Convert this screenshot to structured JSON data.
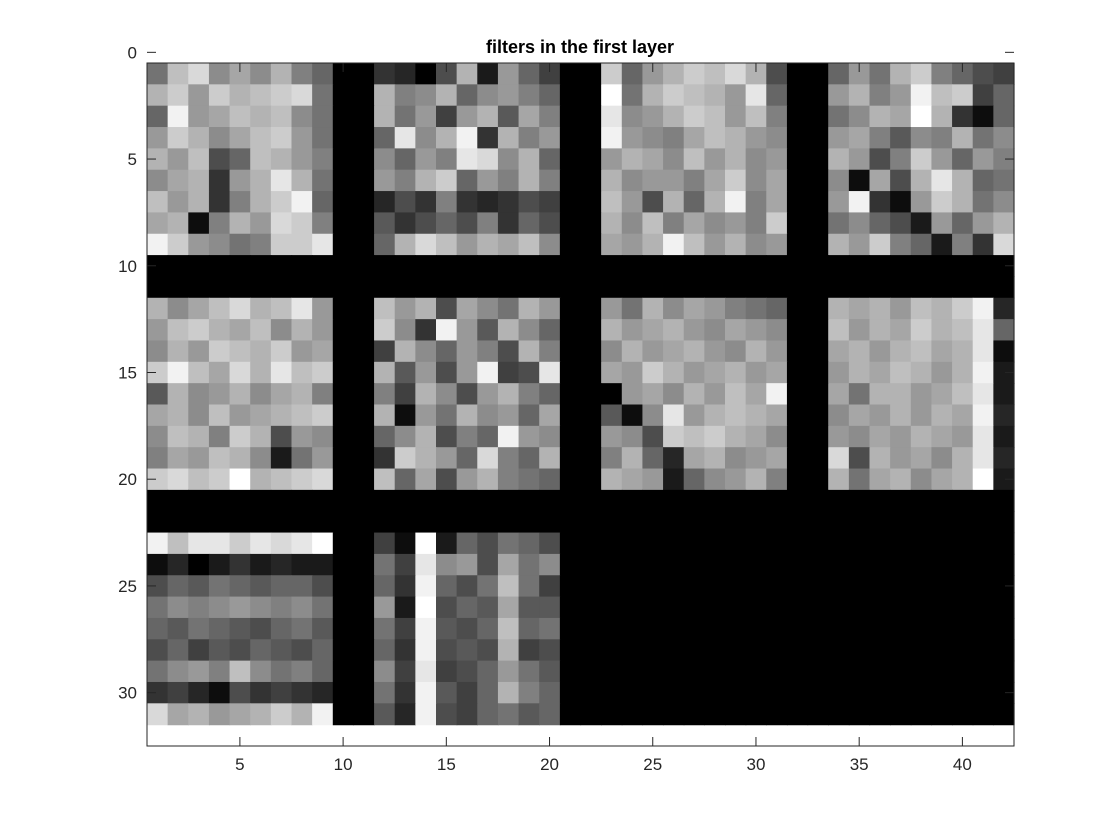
{
  "chart_data": {
    "type": "heatmap",
    "title": "filters in the first layer",
    "xlabel": "",
    "ylabel": "",
    "colormap": "gray",
    "xlim": [
      0.5,
      42.5
    ],
    "ylim": [
      0.5,
      32.5
    ],
    "y_direction": "reverse",
    "xticks": [
      5,
      10,
      15,
      20,
      25,
      30,
      35,
      40
    ],
    "yticks": [
      0,
      5,
      10,
      15,
      20,
      25,
      30
    ],
    "rows": 31,
    "cols": 42,
    "filter_size": 9,
    "filter_grid": {
      "rows": 3,
      "cols": 4
    },
    "num_filters": 10,
    "background_value": 0,
    "filters": [
      [
        [
          0.45,
          0.75,
          0.85,
          0.55,
          0.65,
          0.55,
          0.7,
          0.5,
          0.4
        ],
        [
          0.7,
          0.8,
          0.6,
          0.8,
          0.7,
          0.75,
          0.8,
          0.85,
          0.45
        ],
        [
          0.4,
          0.95,
          0.6,
          0.65,
          0.75,
          0.7,
          0.75,
          0.55,
          0.45
        ],
        [
          0.6,
          0.8,
          0.7,
          0.55,
          0.65,
          0.75,
          0.8,
          0.6,
          0.45
        ],
        [
          0.7,
          0.6,
          0.75,
          0.3,
          0.4,
          0.75,
          0.7,
          0.6,
          0.5
        ],
        [
          0.55,
          0.65,
          0.7,
          0.2,
          0.6,
          0.7,
          0.9,
          0.7,
          0.45
        ],
        [
          0.75,
          0.6,
          0.7,
          0.2,
          0.5,
          0.7,
          0.8,
          0.95,
          0.4
        ],
        [
          0.65,
          0.7,
          0.05,
          0.5,
          0.7,
          0.6,
          0.85,
          0.8,
          0.5
        ],
        [
          0.95,
          0.8,
          0.6,
          0.55,
          0.45,
          0.5,
          0.8,
          0.8,
          0.9
        ]
      ],
      [
        [
          0.2,
          0.15,
          0.0,
          0.3,
          0.7,
          0.1,
          0.6,
          0.4,
          0.25
        ],
        [
          0.7,
          0.5,
          0.55,
          0.7,
          0.4,
          0.55,
          0.6,
          0.5,
          0.4
        ],
        [
          0.7,
          0.45,
          0.6,
          0.25,
          0.6,
          0.7,
          0.35,
          0.65,
          0.5
        ],
        [
          0.4,
          0.9,
          0.55,
          0.7,
          0.95,
          0.2,
          0.7,
          0.5,
          0.6
        ],
        [
          0.55,
          0.4,
          0.6,
          0.5,
          0.9,
          0.85,
          0.55,
          0.7,
          0.4
        ],
        [
          0.6,
          0.5,
          0.7,
          0.8,
          0.4,
          0.6,
          0.5,
          0.7,
          0.5
        ],
        [
          0.15,
          0.3,
          0.2,
          0.5,
          0.2,
          0.15,
          0.2,
          0.3,
          0.25
        ],
        [
          0.35,
          0.2,
          0.3,
          0.4,
          0.3,
          0.5,
          0.2,
          0.4,
          0.3
        ],
        [
          0.4,
          0.7,
          0.85,
          0.75,
          0.6,
          0.7,
          0.65,
          0.75,
          0.55
        ]
      ],
      [
        [
          0.8,
          0.4,
          0.6,
          0.7,
          0.8,
          0.75,
          0.85,
          0.7,
          0.3
        ],
        [
          1.0,
          0.45,
          0.7,
          0.8,
          0.75,
          0.7,
          0.6,
          0.9,
          0.4
        ],
        [
          0.9,
          0.55,
          0.6,
          0.7,
          0.8,
          0.75,
          0.6,
          0.75,
          0.5
        ],
        [
          0.95,
          0.6,
          0.55,
          0.5,
          0.65,
          0.75,
          0.7,
          0.6,
          0.55
        ],
        [
          0.6,
          0.7,
          0.65,
          0.55,
          0.75,
          0.6,
          0.7,
          0.55,
          0.6
        ],
        [
          0.7,
          0.55,
          0.6,
          0.6,
          0.5,
          0.65,
          0.8,
          0.55,
          0.65
        ],
        [
          0.75,
          0.6,
          0.3,
          0.7,
          0.4,
          0.7,
          0.95,
          0.5,
          0.65
        ],
        [
          0.7,
          0.55,
          0.75,
          0.5,
          0.65,
          0.55,
          0.6,
          0.5,
          0.8
        ],
        [
          0.65,
          0.6,
          0.7,
          0.95,
          0.75,
          0.6,
          0.7,
          0.55,
          0.6
        ]
      ],
      [
        [
          0.4,
          0.6,
          0.45,
          0.7,
          0.8,
          0.5,
          0.4,
          0.3,
          0.25
        ],
        [
          0.6,
          0.7,
          0.5,
          0.6,
          0.95,
          0.75,
          0.8,
          0.25,
          0.4
        ],
        [
          0.45,
          0.55,
          0.7,
          0.65,
          1.0,
          0.7,
          0.2,
          0.05,
          0.4
        ],
        [
          0.6,
          0.65,
          0.5,
          0.35,
          0.55,
          0.5,
          0.7,
          0.45,
          0.55
        ],
        [
          0.7,
          0.6,
          0.3,
          0.5,
          0.8,
          0.6,
          0.4,
          0.6,
          0.5
        ],
        [
          0.55,
          0.05,
          0.65,
          0.3,
          0.7,
          0.9,
          0.7,
          0.4,
          0.45
        ],
        [
          0.6,
          0.95,
          0.2,
          0.05,
          0.6,
          0.8,
          0.7,
          0.45,
          0.55
        ],
        [
          0.45,
          0.55,
          0.4,
          0.3,
          0.1,
          0.6,
          0.4,
          0.6,
          0.7
        ],
        [
          0.7,
          0.6,
          0.8,
          0.5,
          0.4,
          0.1,
          0.5,
          0.2,
          0.85
        ]
      ],
      [
        [
          0.7,
          0.55,
          0.65,
          0.75,
          0.85,
          0.7,
          0.75,
          0.9,
          0.6
        ],
        [
          0.6,
          0.75,
          0.8,
          0.7,
          0.65,
          0.75,
          0.55,
          0.7,
          0.6
        ],
        [
          0.55,
          0.7,
          0.6,
          0.8,
          0.75,
          0.7,
          0.8,
          0.6,
          0.65
        ],
        [
          0.8,
          0.95,
          0.75,
          0.65,
          0.85,
          0.7,
          0.9,
          0.75,
          0.8
        ],
        [
          0.35,
          0.7,
          0.55,
          0.6,
          0.7,
          0.55,
          0.65,
          0.7,
          0.5
        ],
        [
          0.65,
          0.7,
          0.55,
          0.75,
          0.6,
          0.65,
          0.7,
          0.75,
          0.8
        ],
        [
          0.55,
          0.75,
          0.7,
          0.5,
          0.8,
          0.7,
          0.3,
          0.6,
          0.55
        ],
        [
          0.5,
          0.65,
          0.6,
          0.75,
          0.7,
          0.55,
          0.1,
          0.45,
          0.6
        ],
        [
          0.8,
          0.85,
          0.75,
          0.8,
          1.0,
          0.7,
          0.75,
          0.8,
          0.85
        ]
      ],
      [
        [
          0.75,
          0.6,
          0.7,
          0.3,
          0.65,
          0.55,
          0.45,
          0.7,
          0.6
        ],
        [
          0.8,
          0.55,
          0.2,
          0.95,
          0.6,
          0.35,
          0.7,
          0.55,
          0.4
        ],
        [
          0.25,
          0.7,
          0.55,
          0.4,
          0.6,
          0.5,
          0.3,
          0.7,
          0.5
        ],
        [
          0.7,
          0.35,
          0.6,
          0.3,
          0.6,
          0.95,
          0.25,
          0.3,
          0.9
        ],
        [
          0.5,
          0.25,
          0.7,
          0.55,
          0.3,
          0.6,
          0.7,
          0.5,
          0.4
        ],
        [
          0.7,
          0.05,
          0.6,
          0.45,
          0.7,
          0.55,
          0.6,
          0.4,
          0.65
        ],
        [
          0.4,
          0.55,
          0.7,
          0.3,
          0.5,
          0.4,
          0.95,
          0.6,
          0.55
        ],
        [
          0.2,
          0.8,
          0.7,
          0.6,
          0.4,
          0.85,
          0.5,
          0.4,
          0.7
        ],
        [
          0.75,
          0.4,
          0.65,
          0.3,
          0.6,
          0.7,
          0.5,
          0.45,
          0.4
        ]
      ],
      [
        [
          0.6,
          0.45,
          0.7,
          0.55,
          0.65,
          0.6,
          0.5,
          0.45,
          0.4
        ],
        [
          0.7,
          0.6,
          0.65,
          0.7,
          0.6,
          0.55,
          0.65,
          0.6,
          0.55
        ],
        [
          0.55,
          0.7,
          0.6,
          0.65,
          0.7,
          0.6,
          0.55,
          0.7,
          0.6
        ],
        [
          0.65,
          0.6,
          0.8,
          0.7,
          0.6,
          0.65,
          0.7,
          0.6,
          0.65
        ],
        [
          0.0,
          0.6,
          0.65,
          0.55,
          0.7,
          0.6,
          0.75,
          0.65,
          0.95
        ],
        [
          0.35,
          0.05,
          0.55,
          0.9,
          0.6,
          0.7,
          0.75,
          0.7,
          0.65
        ],
        [
          0.6,
          0.55,
          0.3,
          0.8,
          0.75,
          0.8,
          0.7,
          0.65,
          0.55
        ],
        [
          0.5,
          0.7,
          0.4,
          0.15,
          0.65,
          0.7,
          0.55,
          0.6,
          0.65
        ],
        [
          0.7,
          0.65,
          0.6,
          0.1,
          0.4,
          0.55,
          0.6,
          0.7,
          0.5
        ]
      ],
      [
        [
          0.7,
          0.65,
          0.7,
          0.6,
          0.75,
          0.7,
          0.8,
          0.95,
          0.15
        ],
        [
          0.75,
          0.6,
          0.7,
          0.65,
          0.8,
          0.7,
          0.75,
          0.9,
          0.4
        ],
        [
          0.65,
          0.7,
          0.6,
          0.7,
          0.75,
          0.65,
          0.7,
          0.9,
          0.05
        ],
        [
          0.6,
          0.7,
          0.65,
          0.75,
          0.7,
          0.6,
          0.7,
          0.95,
          0.1
        ],
        [
          0.65,
          0.45,
          0.7,
          0.7,
          0.6,
          0.65,
          0.75,
          0.9,
          0.1
        ],
        [
          0.55,
          0.65,
          0.6,
          0.7,
          0.6,
          0.7,
          0.65,
          0.95,
          0.15
        ],
        [
          0.6,
          0.55,
          0.65,
          0.6,
          0.7,
          0.65,
          0.6,
          0.9,
          0.1
        ],
        [
          0.85,
          0.3,
          0.7,
          0.6,
          0.65,
          0.55,
          0.7,
          0.9,
          0.15
        ],
        [
          0.7,
          0.45,
          0.65,
          0.7,
          0.55,
          0.65,
          0.7,
          1.0,
          0.1
        ]
      ],
      [
        [
          0.95,
          0.75,
          0.9,
          0.9,
          0.8,
          0.9,
          0.85,
          0.9,
          1.0
        ],
        [
          0.05,
          0.15,
          0.0,
          0.1,
          0.2,
          0.1,
          0.15,
          0.1,
          0.1
        ],
        [
          0.3,
          0.4,
          0.35,
          0.45,
          0.4,
          0.35,
          0.4,
          0.4,
          0.3
        ],
        [
          0.45,
          0.55,
          0.5,
          0.55,
          0.6,
          0.55,
          0.5,
          0.55,
          0.45
        ],
        [
          0.4,
          0.35,
          0.45,
          0.4,
          0.35,
          0.3,
          0.4,
          0.45,
          0.35
        ],
        [
          0.3,
          0.4,
          0.25,
          0.35,
          0.3,
          0.4,
          0.35,
          0.3,
          0.4
        ],
        [
          0.45,
          0.55,
          0.6,
          0.5,
          0.75,
          0.55,
          0.45,
          0.5,
          0.4
        ],
        [
          0.2,
          0.25,
          0.15,
          0.05,
          0.3,
          0.2,
          0.25,
          0.2,
          0.15
        ],
        [
          0.85,
          0.65,
          0.7,
          0.6,
          0.65,
          0.7,
          0.8,
          0.7,
          0.95
        ]
      ],
      [
        [
          0.25,
          0.05,
          1.0,
          0.1,
          0.4,
          0.3,
          0.45,
          0.4,
          0.3
        ],
        [
          0.45,
          0.25,
          0.9,
          0.55,
          0.6,
          0.3,
          0.65,
          0.45,
          0.55
        ],
        [
          0.4,
          0.2,
          0.95,
          0.4,
          0.3,
          0.45,
          0.75,
          0.45,
          0.25
        ],
        [
          0.6,
          0.1,
          1.0,
          0.3,
          0.4,
          0.35,
          0.65,
          0.35,
          0.35
        ],
        [
          0.45,
          0.25,
          0.95,
          0.35,
          0.3,
          0.4,
          0.75,
          0.4,
          0.45
        ],
        [
          0.4,
          0.2,
          0.95,
          0.3,
          0.35,
          0.3,
          0.7,
          0.25,
          0.3
        ],
        [
          0.55,
          0.25,
          0.9,
          0.25,
          0.3,
          0.4,
          0.6,
          0.45,
          0.35
        ],
        [
          0.45,
          0.2,
          0.95,
          0.35,
          0.25,
          0.4,
          0.7,
          0.5,
          0.4
        ],
        [
          0.35,
          0.15,
          0.95,
          0.3,
          0.25,
          0.4,
          0.45,
          0.35,
          0.4
        ]
      ]
    ]
  }
}
